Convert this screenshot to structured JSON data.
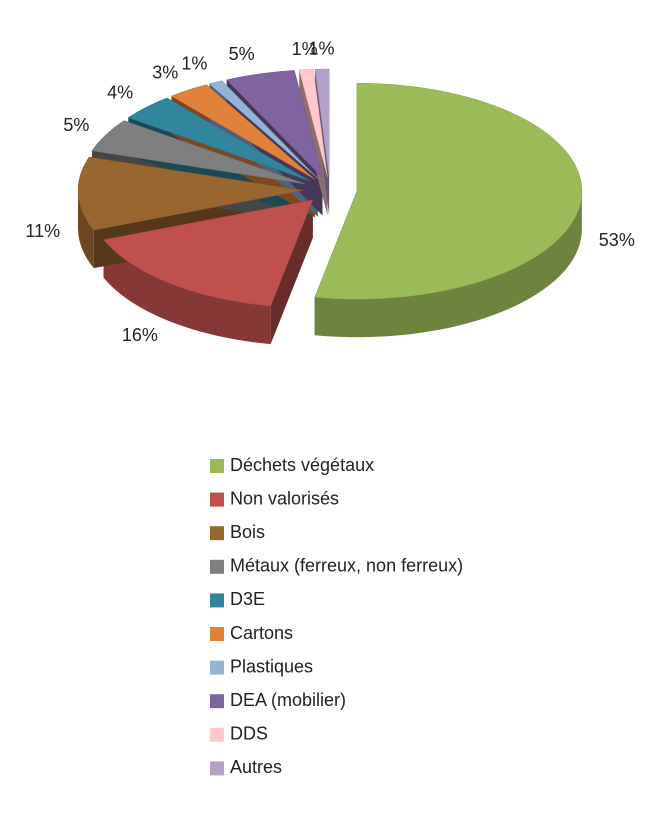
{
  "chart_data": {
    "type": "pie",
    "categories": [
      "Déchets végétaux",
      "Non valorisés",
      "Bois",
      "Métaux (ferreux, non ferreux)",
      "D3E",
      "Cartons",
      "Plastiques",
      "DEA (mobilier)",
      "DDS",
      "Autres"
    ],
    "values": [
      53,
      16,
      11,
      5,
      4,
      3,
      1,
      5,
      1,
      1
    ],
    "value_labels": [
      "53%",
      "16%",
      "11%",
      "5%",
      "4%",
      "3%",
      "1%",
      "5%",
      "1%",
      "1%"
    ],
    "colors": [
      "#9bbb59",
      "#c0504d",
      "#9a6630",
      "#7f7f7f",
      "#31859c",
      "#e0823a",
      "#95b3d7",
      "#8064a2",
      "#ffc7ce",
      "#b3a2c7"
    ],
    "legend": "bottom"
  }
}
